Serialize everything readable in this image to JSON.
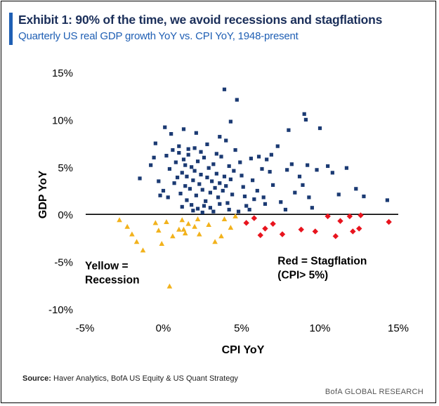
{
  "header": {
    "title": "Exhibit 1: 90% of the time, we avoid recessions and stagflations",
    "subtitle": "Quarterly US real GDP growth YoY vs. CPI YoY, 1948-present"
  },
  "footer": {
    "source_label": "Source:",
    "source_text": "Haver Analytics, BofA US Equity & US Quant Strategy",
    "brand": "BofA GLOBAL RESEARCH"
  },
  "colors": {
    "normal": "#1b3a73",
    "recession": "#f2b21c",
    "stagflation": "#e8141e",
    "title": "#1b2f5a",
    "accent": "#1f5fb4"
  },
  "chart_data": {
    "type": "scatter",
    "title": "Exhibit 1: 90% of the time, we avoid recessions and stagflations",
    "subtitle": "Quarterly US real GDP growth YoY vs. CPI YoY, 1948-present",
    "xlabel": "CPI YoY",
    "ylabel": "GDP YoY",
    "xlim": [
      -5,
      15
    ],
    "ylim": [
      -10,
      15
    ],
    "xticks": [
      -5,
      0,
      5,
      10,
      15
    ],
    "yticks": [
      -10,
      -5,
      0,
      5,
      10,
      15
    ],
    "xtick_labels": [
      "-5%",
      "0%",
      "5%",
      "10%",
      "15%"
    ],
    "ytick_labels": [
      "-10%",
      "-5%",
      "0%",
      "5%",
      "10%",
      "15%"
    ],
    "grid": false,
    "annotations": [
      {
        "text_lines": [
          "Yellow =",
          "Recession"
        ],
        "x": -5.0,
        "y": -5.8
      },
      {
        "text_lines": [
          "Red = Stagflation",
          "(CPI> 5%)"
        ],
        "x": 7.3,
        "y": -5.3
      }
    ],
    "series": [
      {
        "name": "Normal",
        "marker": "square",
        "color": "#1b3a73",
        "points": [
          [
            -1.5,
            3.8
          ],
          [
            -0.8,
            5.2
          ],
          [
            -0.5,
            7.5
          ],
          [
            -0.3,
            3.5
          ],
          [
            0.0,
            2.5
          ],
          [
            0.2,
            6.2
          ],
          [
            0.4,
            4.8
          ],
          [
            0.3,
            1.8
          ],
          [
            -0.2,
            2.0
          ],
          [
            0.5,
            8.5
          ],
          [
            0.7,
            3.3
          ],
          [
            0.8,
            5.5
          ],
          [
            1.0,
            6.5
          ],
          [
            1.1,
            2.2
          ],
          [
            1.2,
            4.4
          ],
          [
            1.3,
            5.8
          ],
          [
            1.4,
            3.0
          ],
          [
            1.5,
            1.5
          ],
          [
            1.5,
            4.0
          ],
          [
            1.6,
            6.3
          ],
          [
            1.7,
            2.7
          ],
          [
            1.8,
            5.0
          ],
          [
            1.9,
            3.6
          ],
          [
            2.0,
            4.6
          ],
          [
            2.1,
            2.0
          ],
          [
            2.2,
            5.6
          ],
          [
            2.3,
            3.2
          ],
          [
            2.4,
            4.2
          ],
          [
            2.5,
            2.6
          ],
          [
            2.6,
            6.0
          ],
          [
            2.7,
            1.4
          ],
          [
            2.8,
            3.9
          ],
          [
            2.9,
            4.9
          ],
          [
            3.0,
            2.3
          ],
          [
            3.1,
            3.5
          ],
          [
            3.2,
            5.3
          ],
          [
            3.3,
            2.8
          ],
          [
            3.4,
            4.3
          ],
          [
            3.5,
            1.8
          ],
          [
            3.6,
            3.3
          ],
          [
            3.7,
            6.1
          ],
          [
            3.8,
            2.5
          ],
          [
            3.9,
            4.0
          ],
          [
            4.0,
            3.0
          ],
          [
            4.1,
            1.2
          ],
          [
            4.2,
            5.1
          ],
          [
            4.3,
            3.7
          ],
          [
            4.4,
            2.1
          ],
          [
            1.2,
            0.8
          ],
          [
            1.8,
            1.0
          ],
          [
            2.2,
            0.6
          ],
          [
            2.6,
            0.9
          ],
          [
            3.0,
            0.7
          ],
          [
            3.6,
            1.1
          ],
          [
            4.2,
            0.5
          ],
          [
            0.9,
            3.9
          ],
          [
            1.4,
            5.2
          ],
          [
            2.4,
            6.6
          ],
          [
            2.0,
            7.0
          ],
          [
            1.6,
            6.9
          ],
          [
            1.0,
            7.2
          ],
          [
            0.6,
            6.8
          ],
          [
            3.4,
            6.4
          ],
          [
            2.8,
            7.4
          ],
          [
            4.0,
            7.8
          ],
          [
            3.9,
            13.2
          ],
          [
            4.7,
            12.1
          ],
          [
            4.3,
            9.8
          ],
          [
            3.6,
            8.2
          ],
          [
            4.6,
            6.8
          ],
          [
            4.9,
            5.5
          ],
          [
            5.0,
            4.1
          ],
          [
            5.1,
            2.9
          ],
          [
            5.2,
            1.9
          ],
          [
            5.3,
            0.9
          ],
          [
            5.5,
            0.5
          ],
          [
            5.6,
            5.9
          ],
          [
            5.7,
            3.6
          ],
          [
            5.8,
            1.6
          ],
          [
            6.0,
            2.5
          ],
          [
            6.1,
            6.1
          ],
          [
            6.3,
            4.8
          ],
          [
            6.5,
            1.1
          ],
          [
            6.6,
            5.8
          ],
          [
            6.8,
            4.5
          ],
          [
            6.9,
            6.3
          ],
          [
            7.0,
            3.1
          ],
          [
            7.3,
            7.2
          ],
          [
            7.5,
            1.3
          ],
          [
            7.9,
            4.7
          ],
          [
            8.2,
            5.3
          ],
          [
            8.4,
            2.3
          ],
          [
            8.7,
            4.0
          ],
          [
            8.9,
            3.1
          ],
          [
            9.0,
            10.6
          ],
          [
            9.1,
            10.0
          ],
          [
            9.2,
            5.2
          ],
          [
            9.3,
            1.8
          ],
          [
            9.5,
            0.7
          ],
          [
            9.8,
            4.7
          ],
          [
            10.0,
            9.1
          ],
          [
            10.5,
            5.1
          ],
          [
            10.8,
            4.4
          ],
          [
            11.2,
            2.1
          ],
          [
            11.7,
            4.9
          ],
          [
            12.3,
            2.7
          ],
          [
            12.8,
            1.9
          ],
          [
            14.3,
            1.5
          ],
          [
            7.8,
            0.5
          ],
          [
            8.0,
            8.9
          ],
          [
            6.4,
            1.8
          ],
          [
            4.5,
            4.6
          ],
          [
            2.1,
            8.6
          ],
          [
            1.3,
            9.0
          ],
          [
            0.1,
            9.2
          ],
          [
            -0.6,
            6.0
          ],
          [
            3.2,
            0.3
          ],
          [
            2.5,
            0.2
          ],
          [
            1.9,
            0.4
          ],
          [
            4.8,
            0.3
          ]
        ]
      },
      {
        "name": "Recession",
        "marker": "triangle",
        "color": "#f2b21c",
        "points": [
          [
            -2.8,
            -0.6
          ],
          [
            -2.3,
            -1.3
          ],
          [
            -2.0,
            -2.1
          ],
          [
            -1.7,
            -2.9
          ],
          [
            -1.3,
            -3.8
          ],
          [
            -0.5,
            -0.9
          ],
          [
            -0.3,
            -1.7
          ],
          [
            -0.1,
            -3.1
          ],
          [
            0.2,
            -0.8
          ],
          [
            0.4,
            -7.6
          ],
          [
            0.6,
            -2.3
          ],
          [
            1.0,
            -1.6
          ],
          [
            1.2,
            -0.6
          ],
          [
            1.4,
            -2.0
          ],
          [
            1.6,
            -1.0
          ],
          [
            2.0,
            -1.3
          ],
          [
            2.3,
            -2.1
          ],
          [
            2.9,
            -1.1
          ],
          [
            3.3,
            -2.9
          ],
          [
            3.7,
            -2.3
          ],
          [
            3.9,
            -0.5
          ],
          [
            4.3,
            -1.4
          ],
          [
            4.6,
            -0.2
          ],
          [
            1.3,
            -1.6
          ],
          [
            2.2,
            -0.5
          ]
        ]
      },
      {
        "name": "Stagflation",
        "marker": "diamond",
        "color": "#e8141e",
        "points": [
          [
            5.3,
            -0.9
          ],
          [
            5.8,
            -0.4
          ],
          [
            6.2,
            -2.2
          ],
          [
            6.5,
            -1.5
          ],
          [
            7.0,
            -1.0
          ],
          [
            7.6,
            -2.1
          ],
          [
            8.8,
            -1.6
          ],
          [
            9.7,
            -1.8
          ],
          [
            10.5,
            -0.2
          ],
          [
            11.0,
            -2.3
          ],
          [
            11.3,
            -0.7
          ],
          [
            12.1,
            -1.8
          ],
          [
            12.5,
            -1.5
          ],
          [
            12.6,
            -0.1
          ],
          [
            14.4,
            -0.8
          ],
          [
            11.9,
            -0.2
          ]
        ]
      }
    ]
  }
}
